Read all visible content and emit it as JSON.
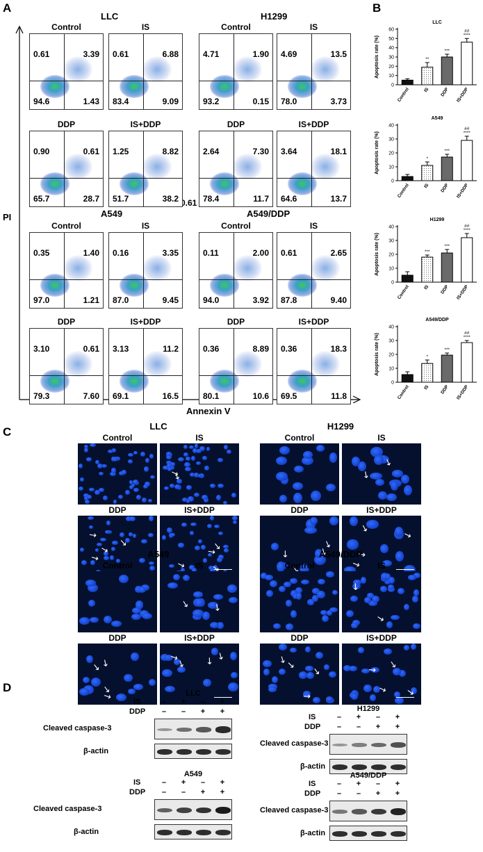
{
  "panels": {
    "A": "A",
    "B": "B",
    "C": "C",
    "D": "D"
  },
  "panelA": {
    "y_axis": "PI",
    "x_axis": "Annexin V",
    "stray_label": "0.61",
    "group_titles": [
      "LLC",
      "H1299",
      "A549",
      "A549/DDP"
    ],
    "plots": [
      {
        "label": "Control",
        "ul": "0.61",
        "ur": "3.39",
        "ll": "94.6",
        "lr": "1.43"
      },
      {
        "label": "IS",
        "ul": "0.61",
        "ur": "6.88",
        "ll": "83.4",
        "lr": "9.09"
      },
      {
        "label": "Control",
        "ul": "4.71",
        "ur": "1.90",
        "ll": "93.2",
        "lr": "0.15"
      },
      {
        "label": "IS",
        "ul": "4.69",
        "ur": "13.5",
        "ll": "78.0",
        "lr": "3.73"
      },
      {
        "label": "DDP",
        "ul": "0.90",
        "ur": "0.61",
        "ll": "65.7",
        "lr": "28.7"
      },
      {
        "label": "IS+DDP",
        "ul": "1.25",
        "ur": "8.82",
        "ll": "51.7",
        "lr": "38.2"
      },
      {
        "label": "DDP",
        "ul": "2.64",
        "ur": "7.30",
        "ll": "78.4",
        "lr": "11.7"
      },
      {
        "label": "IS+DDP",
        "ul": "3.64",
        "ur": "18.1",
        "ll": "64.6",
        "lr": "13.7"
      },
      {
        "label": "Control",
        "ul": "0.35",
        "ur": "1.40",
        "ll": "97.0",
        "lr": "1.21"
      },
      {
        "label": "IS",
        "ul": "0.16",
        "ur": "3.35",
        "ll": "87.0",
        "lr": "9.45"
      },
      {
        "label": "Control",
        "ul": "0.11",
        "ur": "2.00",
        "ll": "94.0",
        "lr": "3.92"
      },
      {
        "label": "IS",
        "ul": "0.61",
        "ur": "2.65",
        "ll": "87.8",
        "lr": "9.40"
      },
      {
        "label": "DDP",
        "ul": "3.10",
        "ur": "0.61",
        "ll": "79.3",
        "lr": "7.60"
      },
      {
        "label": "IS+DDP",
        "ul": "3.13",
        "ur": "11.2",
        "ll": "69.1",
        "lr": "16.5"
      },
      {
        "label": "DDP",
        "ul": "0.36",
        "ur": "8.89",
        "ll": "80.1",
        "lr": "10.6"
      },
      {
        "label": "IS+DDP",
        "ul": "0.36",
        "ur": "18.3",
        "ll": "69.5",
        "lr": "11.8"
      }
    ]
  },
  "chart_data": [
    {
      "type": "bar",
      "title": "LLC",
      "ylabel": "Apoptosis rate (%)",
      "ylim": [
        0,
        60
      ],
      "yticks": [
        0,
        10,
        20,
        30,
        40,
        50,
        60
      ],
      "categories": [
        "Control",
        "IS",
        "DDP",
        "IS+DDP"
      ],
      "values": [
        5,
        19,
        30,
        46
      ],
      "errors": [
        1.5,
        5,
        3,
        4
      ],
      "annotations": [
        [
          ""
        ],
        [
          "**"
        ],
        [
          "***"
        ],
        [
          "##",
          "****"
        ]
      ]
    },
    {
      "type": "bar",
      "title": "A549",
      "ylabel": "Apoptosis rate (%)",
      "ylim": [
        0,
        40
      ],
      "yticks": [
        0,
        10,
        20,
        30,
        40
      ],
      "categories": [
        "Control",
        "IS",
        "DDP",
        "IS+DDP"
      ],
      "values": [
        3,
        11,
        17,
        29
      ],
      "errors": [
        1.5,
        2.5,
        2,
        3
      ],
      "annotations": [
        [
          ""
        ],
        [
          "*"
        ],
        [
          "***"
        ],
        [
          "##",
          "****"
        ]
      ]
    },
    {
      "type": "bar",
      "title": "H1299",
      "ylabel": "Apoptosis rate (%)",
      "ylim": [
        0,
        40
      ],
      "yticks": [
        0,
        10,
        20,
        30,
        40
      ],
      "categories": [
        "Control",
        "IS",
        "DDP",
        "IS+DDP"
      ],
      "values": [
        5,
        18,
        21,
        32
      ],
      "errors": [
        2.5,
        1.5,
        2.5,
        3
      ],
      "annotations": [
        [
          ""
        ],
        [
          "***"
        ],
        [
          "***"
        ],
        [
          "##",
          "****"
        ]
      ]
    },
    {
      "type": "bar",
      "title": "A549/DDP",
      "ylabel": "Apoptosis rate (%)",
      "ylim": [
        0,
        40
      ],
      "yticks": [
        0,
        10,
        20,
        30,
        40
      ],
      "categories": [
        "Control",
        "IS",
        "DDP",
        "IS+DDP"
      ],
      "values": [
        5.5,
        13.5,
        19.5,
        28.5
      ],
      "errors": [
        2,
        2.5,
        1.5,
        1.5
      ],
      "annotations": [
        [
          ""
        ],
        [
          "*"
        ],
        [
          "***"
        ],
        [
          "##",
          "****"
        ]
      ]
    }
  ],
  "panelC": {
    "groups": [
      {
        "title": "LLC",
        "top": [
          "Control",
          "IS"
        ],
        "bottom": [
          "DDP",
          "IS+DDP"
        ]
      },
      {
        "title": "H1299",
        "top": [
          "Control",
          "IS"
        ],
        "bottom": [
          "DDP",
          "IS+DDP"
        ]
      },
      {
        "title": "A549",
        "top": [
          "Control",
          "IS"
        ],
        "bottom": [
          "DDP",
          "IS+DDP"
        ]
      },
      {
        "title": "A549/DDP",
        "top": [
          "Control",
          "IS"
        ],
        "bottom": [
          "DDP",
          "IS+DDP"
        ]
      }
    ]
  },
  "panelD": {
    "row_is": "IS",
    "row_ddp": "DDP",
    "is_signs": [
      "–",
      "+",
      "–",
      "+"
    ],
    "ddp_signs": [
      "–",
      "–",
      "+",
      "+"
    ],
    "band1": "Cleaved caspase-3",
    "band2": "β-actin",
    "groups": [
      "LLC",
      "H1299",
      "A549",
      "A549/DDP"
    ]
  }
}
